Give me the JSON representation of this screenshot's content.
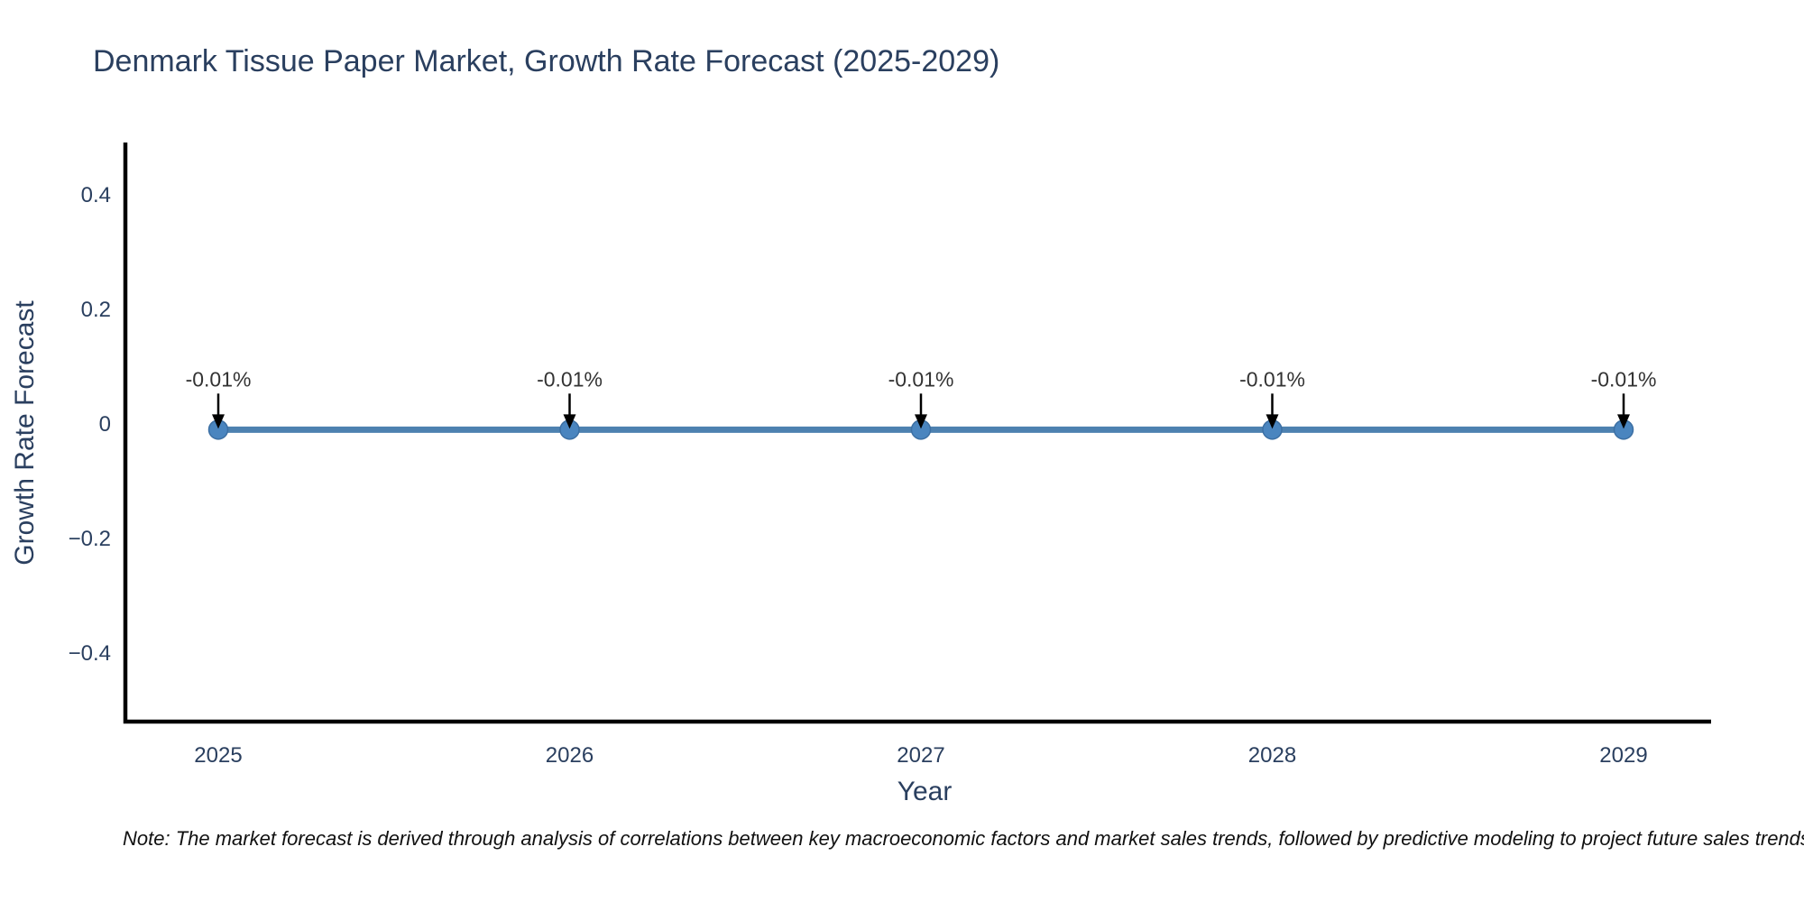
{
  "chart_data": {
    "type": "line",
    "title": "Denmark Tissue Paper Market, Growth Rate Forecast (2025-2029)",
    "xlabel": "Year",
    "ylabel": "Growth Rate Forecast",
    "x": [
      "2025",
      "2026",
      "2027",
      "2028",
      "2029"
    ],
    "series": [
      {
        "name": "Growth Rate Forecast",
        "values": [
          -0.01,
          -0.01,
          -0.01,
          -0.01,
          -0.01
        ]
      }
    ],
    "point_labels": [
      "-0.01%",
      "-0.01%",
      "-0.01%",
      "-0.01%",
      "-0.01%"
    ],
    "yticks": {
      "values": [
        0.4,
        0.2,
        0,
        -0.2,
        -0.4
      ],
      "labels": [
        "0.4",
        "0.2",
        "0",
        "−0.2",
        "−0.4"
      ]
    },
    "ylim": [
      -0.52,
      0.49
    ],
    "grid": false,
    "legend": "none",
    "annotation_arrows": "black, pointing down to each data point",
    "note": "Note: The market forecast is derived through analysis of correlations between key macroeconomic factors and market sales trends, followed by predictive modeling to project future sales trends.",
    "colors": {
      "line": "#4d81b0",
      "marker": "#4a85bf",
      "marker_edge": "#3c6fa3",
      "axis": "#000000",
      "arrow": "#000000",
      "text": "#2a3f5f",
      "annotation": "#333333",
      "note_text": "#111111",
      "background": "#ffffff"
    }
  }
}
